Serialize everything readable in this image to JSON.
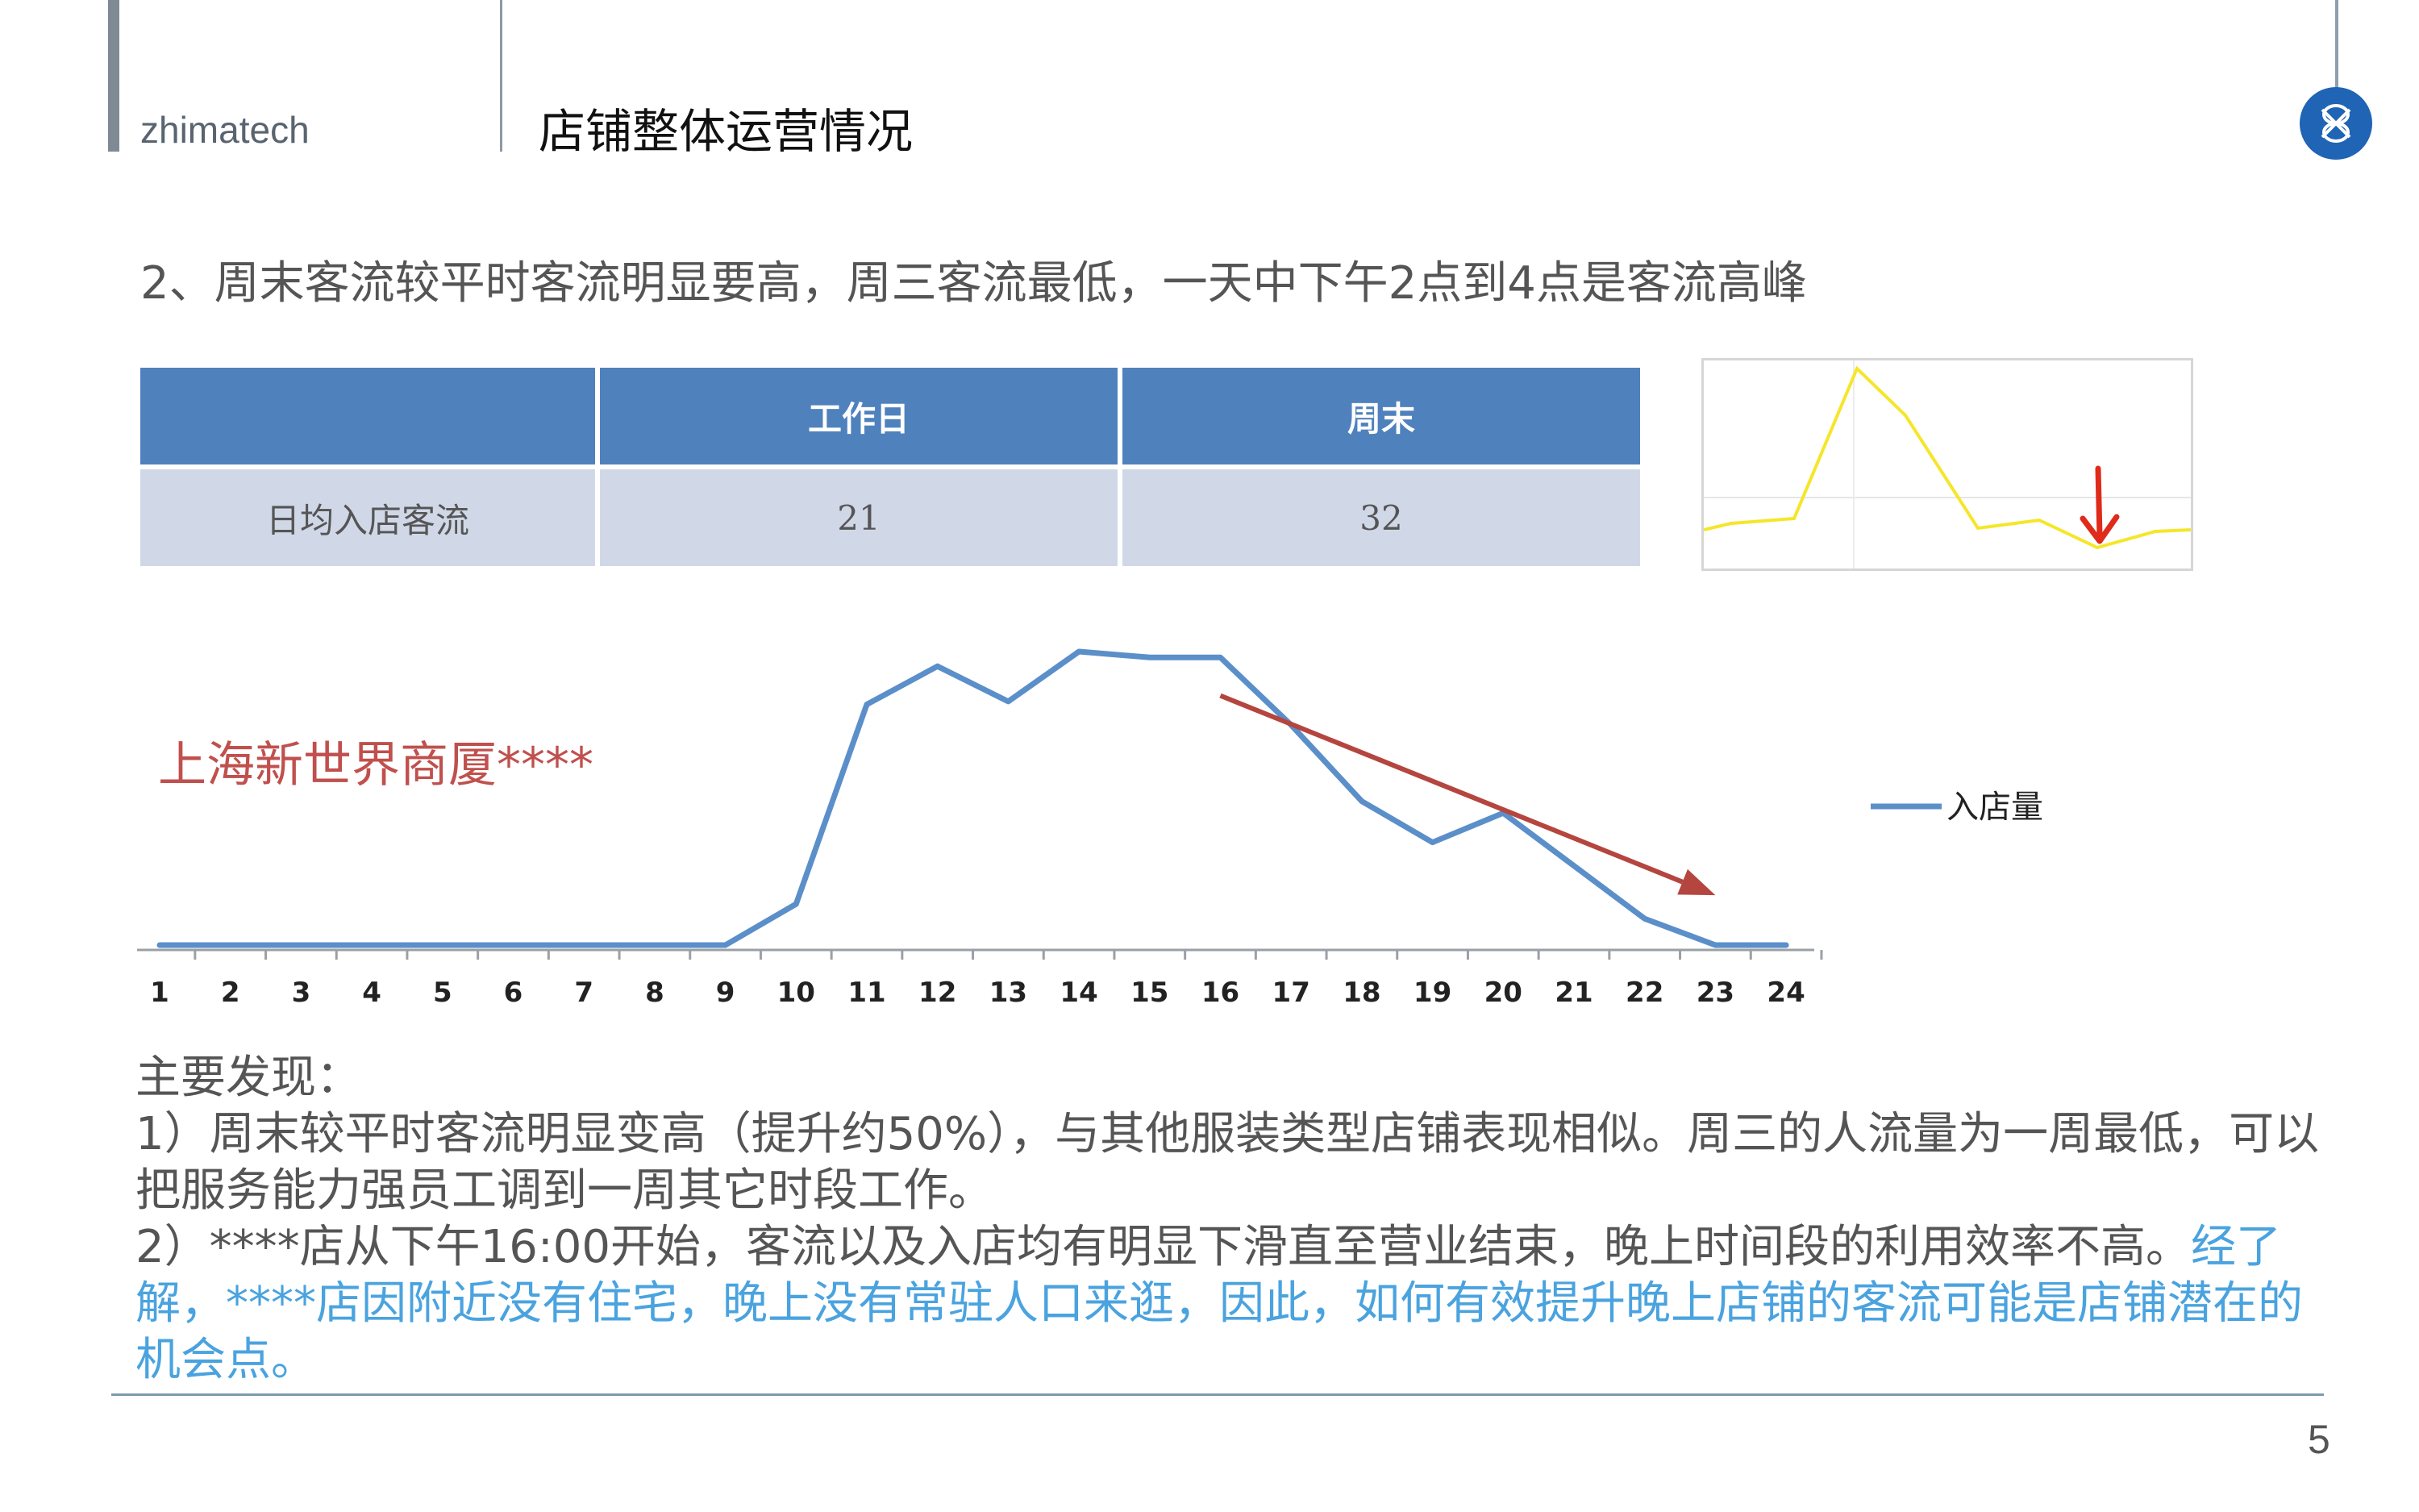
{
  "header": {
    "brand": "zhimatech",
    "title": "店铺整体运营情况",
    "logo_icon": "knot-logo-icon"
  },
  "headline": "2、周末客流较平时客流明显要高，周三客流最低，一天中下午2点到4点是客流高峰",
  "table": {
    "columns": [
      "",
      "工作日",
      "周末"
    ],
    "row_label": "日均入店客流",
    "values": [
      "21",
      "32"
    ]
  },
  "thumbnail": {
    "series_color": "#f5e62a",
    "arrow_color": "#e02a1a",
    "arrow_icon": "red-down-arrow-icon"
  },
  "store_label": "上海新世界商厦****",
  "chart_data": {
    "type": "line",
    "x": [
      "1",
      "2",
      "3",
      "4",
      "5",
      "6",
      "7",
      "8",
      "9",
      "10",
      "11",
      "12",
      "13",
      "14",
      "15",
      "16",
      "17",
      "18",
      "19",
      "20",
      "21",
      "22",
      "23",
      "24"
    ],
    "series": [
      {
        "name": "入店量",
        "color": "#5b8fc9",
        "values": [
          0,
          0,
          0,
          0,
          0,
          0,
          0,
          0,
          0,
          14,
          82,
          95,
          83,
          100,
          98,
          98,
          75,
          49,
          35,
          45,
          27,
          9,
          0,
          0
        ]
      }
    ],
    "trend_arrow": {
      "from_x": 16,
      "from_y": 85,
      "to_x": 23,
      "to_y": 17,
      "color": "#b5453f"
    },
    "ylim": [
      0,
      100
    ],
    "legend": "right",
    "grid": false
  },
  "findings": {
    "heading": "主要发现：",
    "point1": "1）周末较平时客流明显变高（提升约50%），与其他服装类型店铺表现相似。周三的人流量为一周最低，可以把服务能力强员工调到一周其它时段工作。",
    "point2_black": "2）****店从下午16:00开始，客流以及入店均有明显下滑直至营业结束，晚上时间段的利用效率不高。",
    "point2_blue": "经了解，****店因附近没有住宅，晚上没有常驻人口来逛，因此，如何有效提升晚上店铺的客流可能是店铺潜在的机会点。"
  },
  "page_number": "5"
}
